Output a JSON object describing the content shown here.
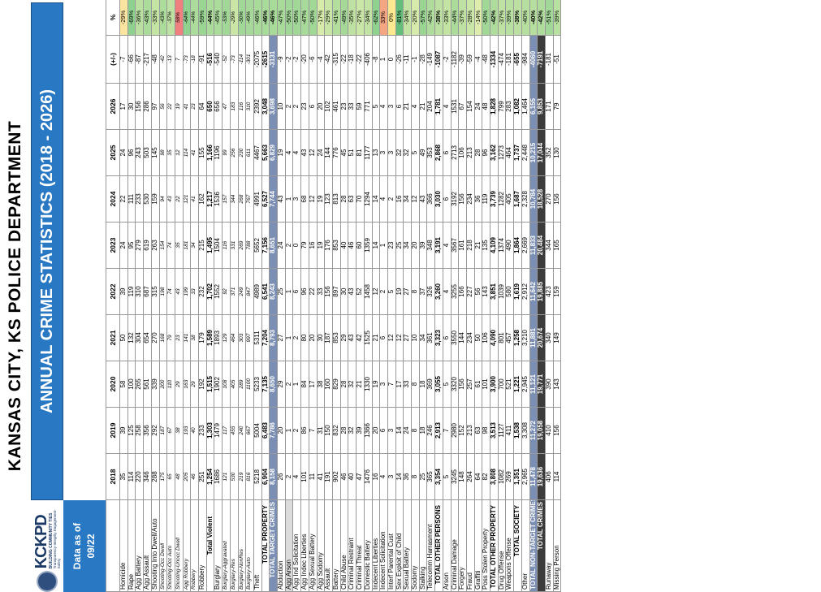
{
  "title": "KANSAS CITY, KS POLICE DEPARTMENT",
  "subtitle": "ANNUAL CRIME STATISTICS (2018 - 2026)",
  "logo": {
    "name": "KCKPD",
    "line1": "BUILDING COMMUNITY TIES",
    "line2": "Transparency-Integrity Engagement-Safety"
  },
  "data_as_of_label": "Data as of",
  "data_as_of_value": "09/22",
  "columns": [
    "2018",
    "2019",
    "2020",
    "2021",
    "2022",
    "2023",
    "2024",
    "2025",
    "2026",
    "(+/-)",
    "%"
  ],
  "rows": [
    {
      "label": "Homicide",
      "v": [
        "35",
        "39",
        "58",
        "50",
        "39",
        "24",
        "22",
        "24",
        "17",
        "-7",
        "-29%"
      ],
      "pc": "#fbe3a0"
    },
    {
      "label": "Rape",
      "v": [
        "114",
        "125",
        "100",
        "132",
        "119",
        "95",
        "111",
        "96",
        "30",
        "-66",
        "-69%"
      ],
      "pc": "#8fd18f"
    },
    {
      "label": "Agg Battery",
      "v": [
        "220",
        "258",
        "265",
        "304",
        "310",
        "279",
        "233",
        "243",
        "156",
        "-87",
        "-36%"
      ],
      "pc": "#b9e0a1"
    },
    {
      "label": "Agg Assault",
      "v": [
        "346",
        "356",
        "561",
        "654",
        "687",
        "619",
        "530",
        "503",
        "286",
        "-217",
        "-43%"
      ],
      "pc": "#acdc9c"
    },
    {
      "label": "Shooting Into Dwell/Auto",
      "v": [
        "288",
        "292",
        "339",
        "270",
        "315",
        "263",
        "159",
        "145",
        "97",
        "-48",
        "-33%"
      ],
      "pc": "#c4e4a4"
    },
    {
      "label": "Shooting-Occ Dwell",
      "v": [
        "175",
        "187",
        "200",
        "168",
        "198",
        "154",
        "94",
        "98",
        "56",
        "-42",
        "-43%"
      ],
      "pc": "#acdc9c",
      "it": 1
    },
    {
      "label": "Shooting-Occ Auto",
      "v": [
        "65",
        "67",
        "110",
        "79",
        "74",
        "74",
        "43",
        "35",
        "22",
        "-13",
        "-37%"
      ],
      "pc": "#bfe2a2",
      "it": 1
    },
    {
      "label": "Shooting-Unocc Dwell",
      "v": [
        "48",
        "38",
        "29",
        "23",
        "43",
        "35",
        "22",
        "12",
        "19",
        "7",
        "58%"
      ],
      "pc": "#f08080",
      "it": 1
    },
    {
      "label": "Agg Robbery",
      "v": [
        "205",
        "193",
        "163",
        "141",
        "199",
        "181",
        "121",
        "114",
        "41",
        "-73",
        "-64%"
      ],
      "pc": "#8fd18f",
      "it": 1
    },
    {
      "label": "Robbery",
      "v": [
        "46",
        "40",
        "29",
        "38",
        "33",
        "34",
        "41",
        "41",
        "23",
        "-18",
        "-44%"
      ],
      "pc": "#acdc9c",
      "it": 1
    },
    {
      "label": "Robbery",
      "v": [
        "251",
        "233",
        "192",
        "179",
        "232",
        "215",
        "162",
        "155",
        "64",
        "-91",
        "-59%"
      ],
      "pc": "#9bd594"
    },
    {
      "label": "Total Violent",
      "v": [
        "1,254",
        "1,303",
        "1,515",
        "1,589",
        "1,702",
        "1,495",
        "1,217",
        "1,166",
        "650",
        "-516",
        "-44%"
      ],
      "pc": "#acdc9c",
      "cls": "viol"
    },
    {
      "label": "Burglary",
      "v": [
        "1686",
        "1479",
        "1902",
        "1893",
        "1552",
        "1504",
        "1536",
        "1196",
        "656",
        "-540",
        "-45%"
      ],
      "pc": "#acdc9c"
    },
    {
      "label": "Burglary-Aggravated",
      "v": [
        "121",
        "117",
        "108",
        "129",
        "92",
        "116",
        "157",
        "99",
        "47",
        "-52",
        "-53%"
      ],
      "pc": "#a1d797",
      "it": 1
    },
    {
      "label": "Burglary-Res",
      "v": [
        "530",
        "455",
        "405",
        "464",
        "371",
        "331",
        "344",
        "256",
        "183",
        "-73",
        "-29%"
      ],
      "pc": "#c9e6a6",
      "it": 1
    },
    {
      "label": "Burglary-NonRes",
      "v": [
        "219",
        "240",
        "289",
        "303",
        "249",
        "269",
        "268",
        "230",
        "116",
        "-114",
        "-50%"
      ],
      "pc": "#a1d797",
      "it": 1
    },
    {
      "label": "Burglary-Auto",
      "v": [
        "816",
        "667",
        "1100",
        "997",
        "847",
        "788",
        "767",
        "611",
        "310",
        "-301",
        "-49%"
      ],
      "pc": "#a6d999",
      "it": 1
    },
    {
      "label": "Theft",
      "v": [
        "5218",
        "5004",
        "5233",
        "5311",
        "4989",
        "5652",
        "4991",
        "4467",
        "2392",
        "-2075",
        "-46%"
      ],
      "pc": "#a8da9a"
    },
    {
      "label": "TOTAL PROPERTY",
      "v": [
        "6,904",
        "6,483",
        "7,135",
        "7,204",
        "6,541",
        "7,156",
        "6,527",
        "5,663",
        "3,048",
        "-2615",
        "-46%"
      ],
      "pc": "#a8da9a",
      "cls": "sub"
    },
    {
      "label": "TOTAL TARGET CRIMES",
      "v": [
        "8,158",
        "7,786",
        "8,650",
        "8,793",
        "8,243",
        "8,651",
        "7,744",
        "6,829",
        "3,698",
        "-3131",
        "-46%"
      ],
      "pc": "#a8da9a",
      "cls": "tgt"
    },
    {
      "label": "Abduction",
      "v": [
        "26",
        "20",
        "29",
        "27",
        "25",
        "24",
        "43",
        "19",
        "10",
        "-9",
        "-47%"
      ],
      "pc": "#a8da9a"
    },
    {
      "label": "Agg Arson",
      "v": [
        "2",
        "1",
        "2",
        "1",
        "1",
        "2",
        "1",
        "4",
        "2",
        "-2",
        "-50%"
      ],
      "pc": "#a1d797",
      "shade": 1
    },
    {
      "label": "Agg Ind Solicitation",
      "v": [
        "4",
        "2",
        "1",
        "2",
        "6",
        "0",
        "3",
        "4",
        "2",
        "-2",
        "-50%"
      ],
      "pc": "#a1d797"
    },
    {
      "label": "Agg Indec Liberties",
      "v": [
        "101",
        "86",
        "84",
        "80",
        "96",
        "79",
        "68",
        "43",
        "23",
        "-20",
        "-47%"
      ],
      "pc": "#a8da9a"
    },
    {
      "label": "Agg Sexual Battery",
      "v": [
        "11",
        "7",
        "17",
        "20",
        "22",
        "16",
        "12",
        "12",
        "6",
        "-6",
        "-50%"
      ],
      "pc": "#a1d797"
    },
    {
      "label": "Agg Sodomy",
      "v": [
        "41",
        "31",
        "38",
        "30",
        "33",
        "19",
        "19",
        "24",
        "20",
        "-4",
        "-17%"
      ],
      "pc": "#d7ebab"
    },
    {
      "label": "Assault",
      "v": [
        "191",
        "150",
        "160",
        "187",
        "156",
        "176",
        "123",
        "144",
        "102",
        "-42",
        "-29%"
      ],
      "pc": "#c9e6a6"
    },
    {
      "label": "Battery",
      "v": [
        "902",
        "832",
        "829",
        "853",
        "897",
        "853",
        "813",
        "776",
        "461",
        "-315",
        "-41%"
      ],
      "pc": "#b3de9e"
    },
    {
      "label": "Child Abuse",
      "v": [
        "46",
        "28",
        "28",
        "29",
        "30",
        "40",
        "28",
        "45",
        "23",
        "-22",
        "-49%"
      ],
      "pc": "#a6d999"
    },
    {
      "label": "Criminal Restraint",
      "v": [
        "40",
        "32",
        "32",
        "43",
        "43",
        "46",
        "63",
        "51",
        "33",
        "-18",
        "-35%"
      ],
      "pc": "#bfe2a2"
    },
    {
      "label": "Criminal Threat",
      "v": [
        "47",
        "39",
        "21",
        "42",
        "52",
        "60",
        "70",
        "81",
        "59",
        "-22",
        "-27%"
      ],
      "pc": "#cbe7a7"
    },
    {
      "label": "Domestic Battery",
      "v": [
        "1476",
        "1366",
        "1330",
        "1525",
        "1458",
        "1359",
        "1294",
        "1177",
        "771",
        "-406",
        "-34%"
      ],
      "pc": "#c2e3a3"
    },
    {
      "label": "Indecent Liberties",
      "v": [
        "16",
        "20",
        "19",
        "21",
        "12",
        "14",
        "14",
        "13",
        "5",
        "-8",
        "-62%"
      ],
      "pc": "#8fd18f"
    },
    {
      "label": "Indecent Solicitation",
      "v": [
        "4",
        "6",
        "3",
        "6",
        "2",
        "1",
        "4",
        "3",
        "4",
        "1",
        "33%"
      ],
      "pc": "#f4a582"
    },
    {
      "label": "Interf Parental Cust",
      "v": [
        "3",
        "3",
        "7",
        "12",
        "5",
        "23",
        "2",
        "3",
        "3",
        "0",
        "0%"
      ],
      "pc": "#fbe88f"
    },
    {
      "label": "Sex Exploit of Child",
      "v": [
        "14",
        "14",
        "17",
        "12",
        "19",
        "25",
        "16",
        "32",
        "6",
        "-26",
        "-81%"
      ],
      "pc": "#63be7b"
    },
    {
      "label": "Sexual Battery",
      "v": [
        "36",
        "24",
        "33",
        "27",
        "27",
        "34",
        "34",
        "32",
        "21",
        "-11",
        "-34%"
      ],
      "pc": "#c2e3a3"
    },
    {
      "label": "Sodomy",
      "v": [
        "8",
        "8",
        "8",
        "10",
        "8",
        "20",
        "12",
        "5",
        "4",
        "-1",
        "-20%"
      ],
      "pc": "#d5eaab"
    },
    {
      "label": "Stalking",
      "v": [
        "25",
        "18",
        "18",
        "34",
        "37",
        "39",
        "43",
        "49",
        "21",
        "-28",
        "-57%"
      ],
      "pc": "#9bd594"
    },
    {
      "label": "Telecomm Harrasment",
      "v": [
        "365",
        "246",
        "369",
        "361",
        "326",
        "348",
        "366",
        "353",
        "204",
        "-149",
        "-42%"
      ],
      "pc": "#afdc9d"
    },
    {
      "label": "TOTAL OTHER PERSONS",
      "v": [
        "3,354",
        "2,913",
        "3,055",
        "3,323",
        "3,260",
        "3,191",
        "3,030",
        "2,868",
        "1,781",
        "-1087",
        "-38%"
      ],
      "pc": "#bbe0a1",
      "cls": "sub"
    },
    {
      "label": "Arson",
      "v": [
        "5",
        "7",
        "5",
        "6",
        "4",
        "4",
        "6",
        "6",
        "4",
        "-2",
        "-33%"
      ],
      "pc": "#c4e4a4"
    },
    {
      "label": "Criminal Damage",
      "v": [
        "3245",
        "2980",
        "3320",
        "3550",
        "3255",
        "3567",
        "3192",
        "2713",
        "1531",
        "-1182",
        "-44%"
      ],
      "pc": "#acdc9c"
    },
    {
      "label": "Forgery",
      "v": [
        "148",
        "152",
        "156",
        "144",
        "166",
        "161",
        "156",
        "106",
        "67",
        "-39",
        "-37%"
      ],
      "pc": "#bfe2a2"
    },
    {
      "label": "Fraud",
      "v": [
        "264",
        "213",
        "257",
        "234",
        "227",
        "218",
        "234",
        "213",
        "154",
        "-59",
        "-28%"
      ],
      "pc": "#cbe7a7"
    },
    {
      "label": "Graffiti",
      "v": [
        "64",
        "63",
        "61",
        "50",
        "56",
        "21",
        "36",
        "28",
        "24",
        "-4",
        "-14%"
      ],
      "pc": "#dcedad"
    },
    {
      "label": "Poss Stolen Property",
      "v": [
        "82",
        "98",
        "101",
        "106",
        "143",
        "135",
        "119",
        "96",
        "48",
        "-48",
        "-50%"
      ],
      "pc": "#a1d797"
    },
    {
      "label": "TOTAL OTHER PROPERTY",
      "v": [
        "3,808",
        "3,513",
        "3,900",
        "4,090",
        "3,851",
        "4,109",
        "3,739",
        "3,162",
        "1,828",
        "-1334",
        "-42%"
      ],
      "pc": "#afdc9d",
      "cls": "sub"
    },
    {
      "label": "Drug Offense",
      "v": [
        "1082",
        "1127",
        "700",
        "801",
        "1039",
        "1374",
        "1282",
        "1273",
        "799",
        "-474",
        "-37%"
      ],
      "pc": "#bfe2a2"
    },
    {
      "label": "Weapons Offense",
      "v": [
        "269",
        "411",
        "521",
        "457",
        "580",
        "490",
        "405",
        "464",
        "283",
        "-181",
        "-39%"
      ],
      "pc": "#b8e0a1"
    },
    {
      "label": "TOTAL SOCIETY",
      "v": [
        "1,351",
        "1,538",
        "1,221",
        "1,258",
        "1,619",
        "1,864",
        "1,687",
        "1,737",
        "1,082",
        "-655",
        "-38%"
      ],
      "pc": "#bbe0a1",
      "cls": "sub"
    },
    {
      "label": "Other",
      "v": [
        "2,965",
        "3,308",
        "2,945",
        "3,210",
        "2,912",
        "2,669",
        "2,328",
        "2,448",
        "1,464",
        "-984",
        "-40%"
      ],
      "pc": "#b6df9f"
    },
    {
      "label": "TOTAL NON-TARGET CRIMES",
      "v": [
        "11,478",
        "11,272",
        "11,121",
        "11,881",
        "11,642",
        "11,833",
        "10,784",
        "10,215",
        "6,155",
        "-4060",
        "-40%"
      ],
      "pc": "#b6df9f",
      "cls": "tgt"
    },
    {
      "label": "TOTAL CRIMES",
      "v": [
        "19,636",
        "19,058",
        "19,771",
        "20,674",
        "19,885",
        "20,484",
        "18,528",
        "17,044",
        "9,853",
        "-7191",
        "-42%"
      ],
      "pc": "#afdc9d",
      "cls": "dark"
    },
    {
      "label": "Runaway",
      "v": [
        "406",
        "410",
        "390",
        "340",
        "423",
        "344",
        "270",
        "352",
        "171",
        "-181",
        "-51%"
      ],
      "pc": "#a1d797"
    },
    {
      "label": "Missing Person",
      "v": [
        "114",
        "156",
        "143",
        "149",
        "159",
        "165",
        "156",
        "130",
        "79",
        "-51",
        "-39%"
      ],
      "pc": "#b8e0a1"
    }
  ]
}
